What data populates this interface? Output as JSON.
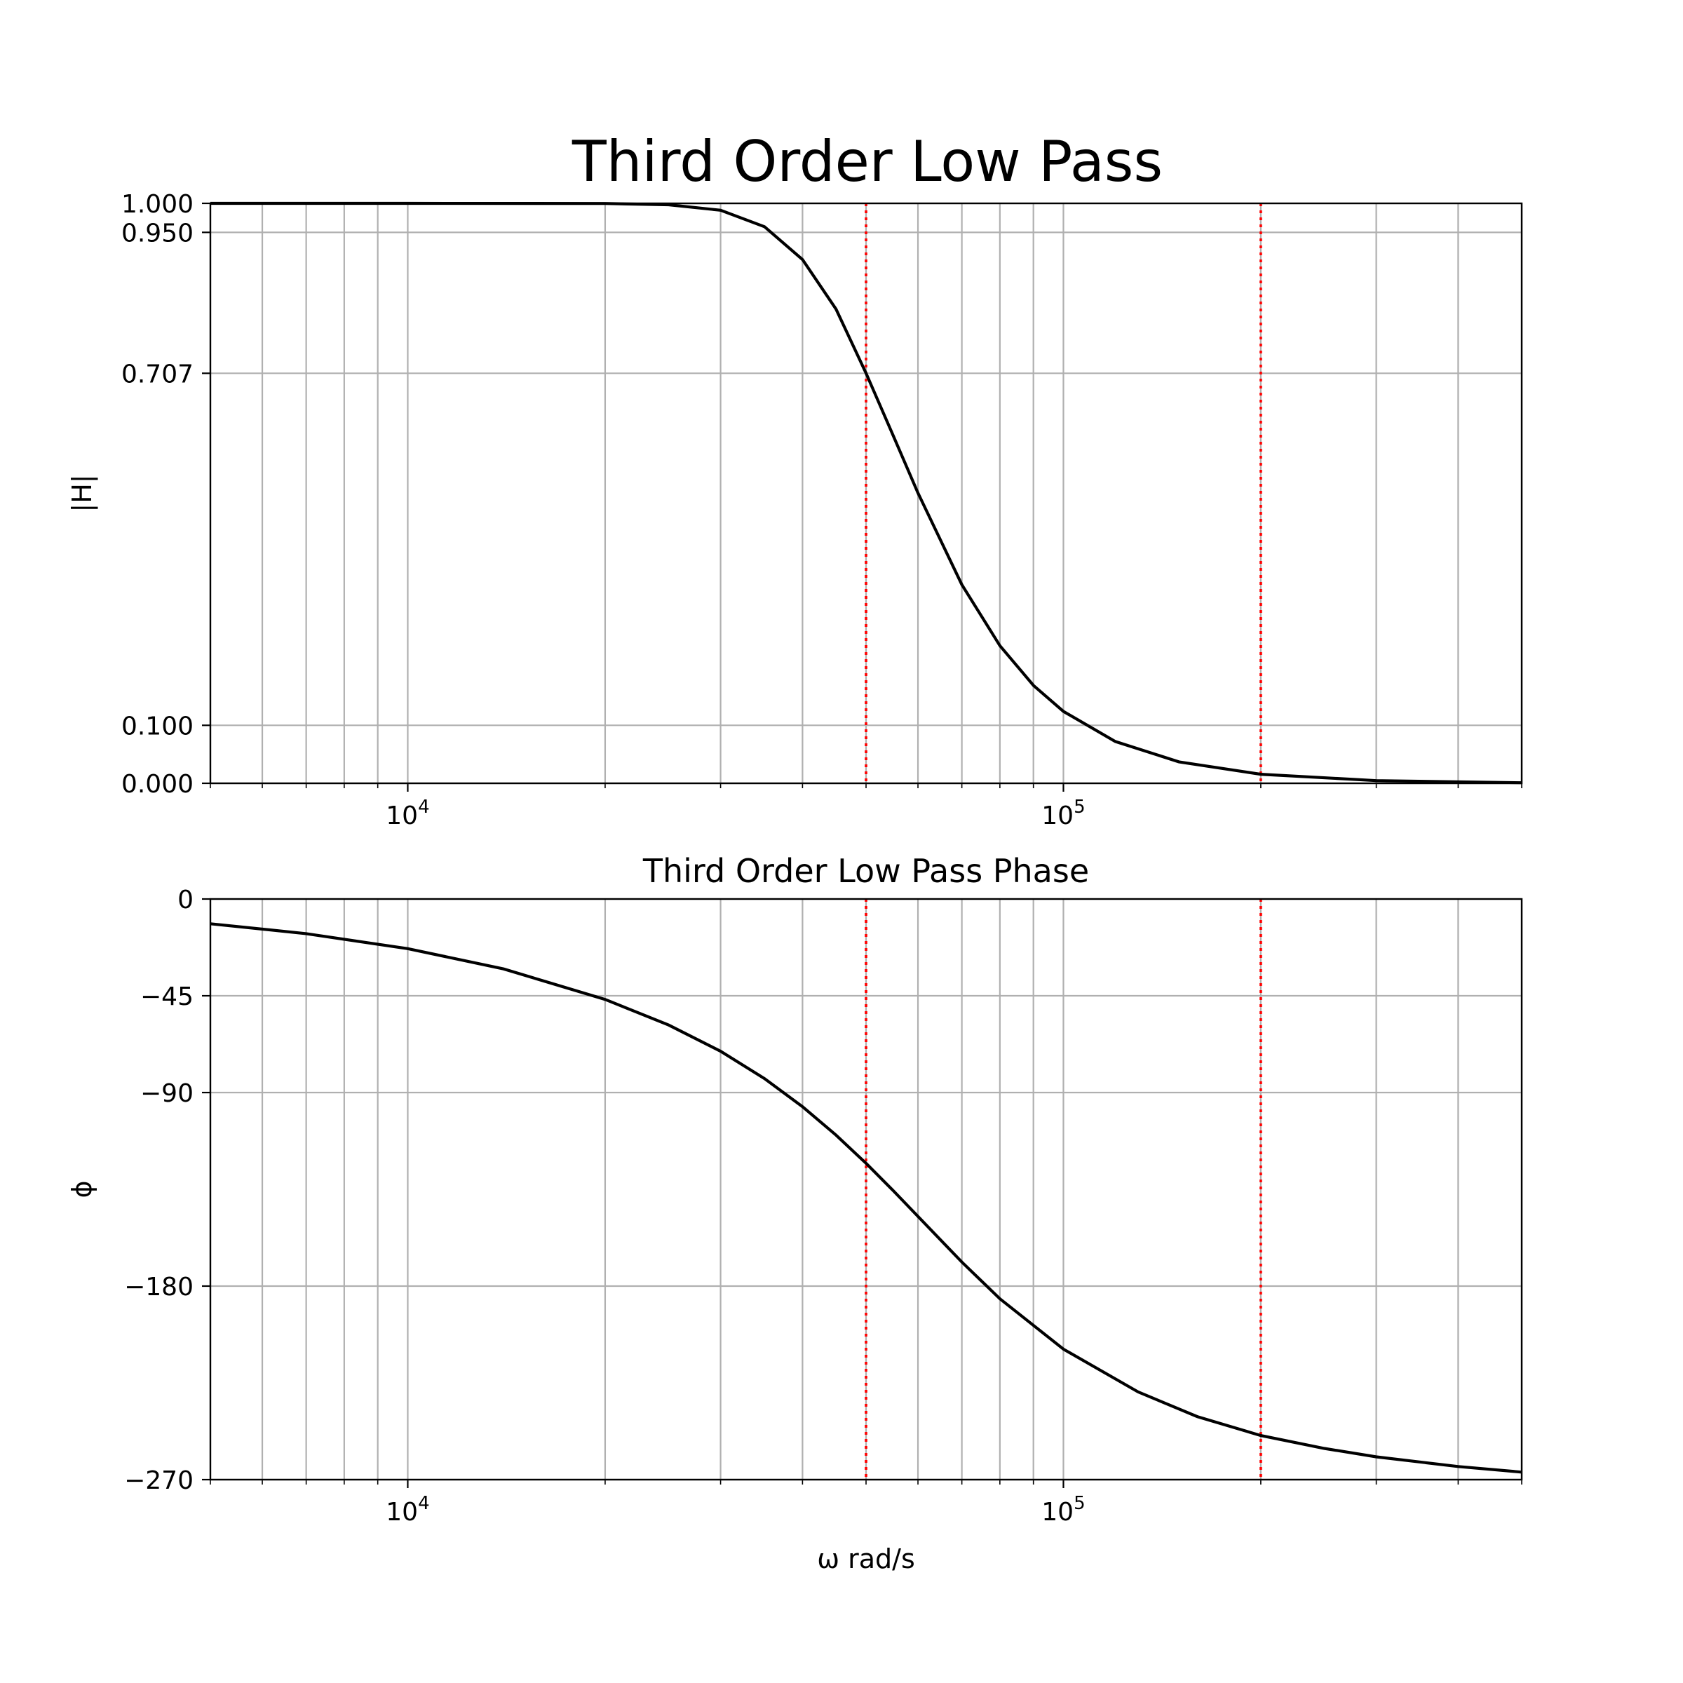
{
  "figure": {
    "title": "Third Order Low Pass"
  },
  "chart_data": [
    {
      "type": "line",
      "title": "",
      "xlabel": "",
      "ylabel": "|H|",
      "xscale": "log",
      "xlim": [
        5000,
        500000
      ],
      "ylim": [
        0,
        1
      ],
      "x_tick_labels": [
        {
          "value": 10000,
          "base": "10",
          "exp": "4"
        },
        {
          "value": 100000,
          "base": "10",
          "exp": "5"
        }
      ],
      "y_ticks": [
        0,
        0.1,
        0.707,
        0.95,
        1.0
      ],
      "y_tick_labels": [
        "0.000",
        "0.100",
        "0.707",
        "0.950",
        "1.000"
      ],
      "grid": true,
      "markers": {
        "x": [
          50000,
          200000
        ],
        "color": "#ff0000",
        "style": "dotted"
      },
      "series": [
        {
          "color": "#000000",
          "x": [
            5000,
            10000,
            20000,
            25000,
            30000,
            35000,
            40000,
            45000,
            50000,
            55000,
            60000,
            70000,
            80000,
            90000,
            100000,
            120000,
            150000,
            200000,
            300000,
            500000
          ],
          "y": [
            1.0,
            1.0,
            0.9997,
            0.9976,
            0.9881,
            0.9597,
            0.9031,
            0.8177,
            0.7071,
            0.5996,
            0.5007,
            0.3426,
            0.2372,
            0.1688,
            0.124,
            0.0721,
            0.037,
            0.0156,
            0.0046,
            0.001
          ]
        }
      ]
    },
    {
      "type": "line",
      "title": "Third Order Low Pass Phase",
      "xlabel": "ω rad/s",
      "ylabel": "ϕ",
      "xscale": "log",
      "xlim": [
        5000,
        500000
      ],
      "ylim": [
        -270,
        0
      ],
      "x_tick_labels": [
        {
          "value": 10000,
          "base": "10",
          "exp": "4"
        },
        {
          "value": 100000,
          "base": "10",
          "exp": "5"
        }
      ],
      "y_ticks": [
        0,
        -45,
        -90,
        -180,
        -270
      ],
      "y_tick_labels": [
        "0",
        "−45",
        "−90",
        "−180",
        "−270"
      ],
      "grid": true,
      "markers": {
        "x": [
          50000,
          200000
        ],
        "color": "#ff0000",
        "style": "dotted"
      },
      "series": [
        {
          "color": "#000000",
          "x": [
            5000,
            7000,
            10000,
            14000,
            20000,
            25000,
            30000,
            35000,
            40000,
            45000,
            50000,
            55000,
            60000,
            70000,
            80000,
            100000,
            130000,
            160000,
            200000,
            250000,
            300000,
            400000,
            500000
          ],
          "y": [
            -11.5,
            -16.1,
            -23.1,
            -32.5,
            -46.7,
            -58.6,
            -70.8,
            -83.5,
            -96.6,
            -109.8,
            -122.9,
            -135.6,
            -147.6,
            -168.8,
            -185.9,
            -209.3,
            -229.2,
            -240.7,
            -249.5,
            -255.5,
            -259.4,
            -263.9,
            -266.5
          ]
        }
      ]
    }
  ]
}
